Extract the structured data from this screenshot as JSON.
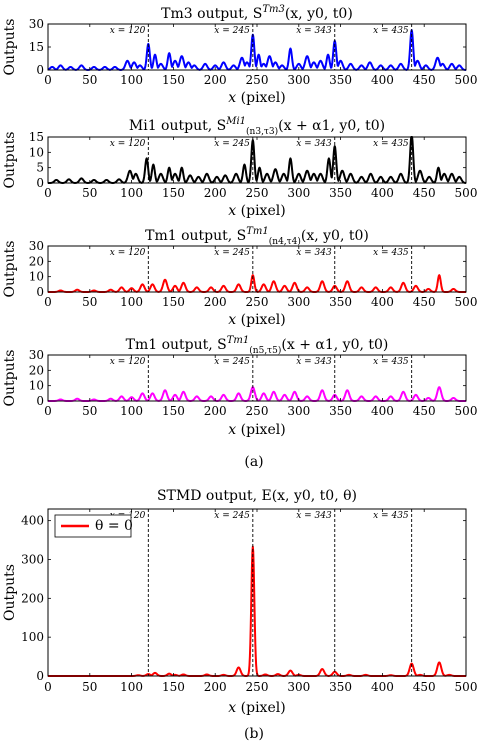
{
  "figure": {
    "label_a": "(a)",
    "label_b": "(b)"
  },
  "chart_data": [
    {
      "type": "line",
      "title": "Tm3 output, S^{Tm3}(x, y0, t0)",
      "xlabel": "x (pixel)",
      "ylabel": "Outputs",
      "xlim": [
        0,
        500
      ],
      "ylim": [
        0,
        30
      ],
      "xticks": [
        0,
        50,
        100,
        150,
        200,
        250,
        300,
        350,
        400,
        450,
        500
      ],
      "yticks": [
        0,
        15,
        30
      ],
      "color": "#0000ff",
      "grid": false,
      "markers": [
        {
          "x": 120,
          "label": "x = 120"
        },
        {
          "x": 245,
          "label": "x = 245"
        },
        {
          "x": 343,
          "label": "x = 343"
        },
        {
          "x": 435,
          "label": "x = 435"
        }
      ],
      "series": [
        {
          "peaks": [
            [
              5,
              2
            ],
            [
              15,
              3
            ],
            [
              27,
              2
            ],
            [
              40,
              3
            ],
            [
              55,
              2
            ],
            [
              68,
              2
            ],
            [
              80,
              2
            ],
            [
              95,
              6
            ],
            [
              103,
              5
            ],
            [
              110,
              3
            ],
            [
              120,
              17
            ],
            [
              128,
              10
            ],
            [
              135,
              4
            ],
            [
              145,
              11
            ],
            [
              152,
              6
            ],
            [
              160,
              9
            ],
            [
              168,
              5
            ],
            [
              175,
              3
            ],
            [
              188,
              4
            ],
            [
              200,
              3
            ],
            [
              210,
              5
            ],
            [
              222,
              3
            ],
            [
              232,
              8
            ],
            [
              238,
              5
            ],
            [
              245,
              23
            ],
            [
              252,
              10
            ],
            [
              258,
              4
            ],
            [
              265,
              9
            ],
            [
              272,
              5
            ],
            [
              280,
              3
            ],
            [
              290,
              14
            ],
            [
              300,
              4
            ],
            [
              310,
              9
            ],
            [
              318,
              5
            ],
            [
              326,
              6
            ],
            [
              335,
              10
            ],
            [
              343,
              19
            ],
            [
              350,
              6
            ],
            [
              362,
              4
            ],
            [
              375,
              3
            ],
            [
              385,
              5
            ],
            [
              398,
              3
            ],
            [
              410,
              3
            ],
            [
              422,
              4
            ],
            [
              435,
              26
            ],
            [
              442,
              6
            ],
            [
              452,
              3
            ],
            [
              466,
              8
            ],
            [
              472,
              4
            ],
            [
              483,
              4
            ],
            [
              492,
              3
            ]
          ]
        }
      ]
    },
    {
      "type": "line",
      "title": "Mi1 output, S^{Mi1}_{(n3,τ3)}(x + α1, y0, t0)",
      "xlabel": "x (pixel)",
      "ylabel": "Outputs",
      "xlim": [
        0,
        500
      ],
      "ylim": [
        0,
        15
      ],
      "xticks": [
        0,
        50,
        100,
        150,
        200,
        250,
        300,
        350,
        400,
        450,
        500
      ],
      "yticks": [
        0,
        5,
        10,
        15
      ],
      "color": "#000000",
      "grid": false,
      "markers": [
        {
          "x": 120,
          "label": "x = 120"
        },
        {
          "x": 245,
          "label": "x = 245"
        },
        {
          "x": 343,
          "label": "x = 343"
        },
        {
          "x": 435,
          "label": "x = 435"
        }
      ],
      "series": [
        {
          "peaks": [
            [
              10,
              1
            ],
            [
              25,
              1.2
            ],
            [
              40,
              1.5
            ],
            [
              55,
              1
            ],
            [
              70,
              1
            ],
            [
              85,
              1.2
            ],
            [
              98,
              4
            ],
            [
              105,
              3
            ],
            [
              118,
              8
            ],
            [
              126,
              6
            ],
            [
              135,
              3
            ],
            [
              145,
              5
            ],
            [
              152,
              3
            ],
            [
              160,
              5
            ],
            [
              170,
              2.5
            ],
            [
              180,
              2
            ],
            [
              190,
              3
            ],
            [
              202,
              2
            ],
            [
              212,
              2.5
            ],
            [
              225,
              3
            ],
            [
              235,
              6
            ],
            [
              245,
              14
            ],
            [
              253,
              5
            ],
            [
              262,
              3
            ],
            [
              272,
              4.5
            ],
            [
              282,
              3
            ],
            [
              290,
              8
            ],
            [
              300,
              3
            ],
            [
              310,
              4
            ],
            [
              318,
              3
            ],
            [
              326,
              3
            ],
            [
              336,
              8
            ],
            [
              343,
              12
            ],
            [
              352,
              4
            ],
            [
              362,
              3
            ],
            [
              375,
              2
            ],
            [
              386,
              3
            ],
            [
              398,
              2
            ],
            [
              410,
              2
            ],
            [
              422,
              3
            ],
            [
              435,
              16
            ],
            [
              445,
              4
            ],
            [
              456,
              2
            ],
            [
              467,
              5
            ],
            [
              474,
              3
            ],
            [
              483,
              3
            ],
            [
              492,
              2
            ]
          ]
        }
      ]
    },
    {
      "type": "line",
      "title": "Tm1 output, S^{Tm1}_{(n4,τ4)}(x, y0, t0)",
      "xlabel": "x (pixel)",
      "ylabel": "Outputs",
      "xlim": [
        0,
        500
      ],
      "ylim": [
        0,
        30
      ],
      "xticks": [
        0,
        50,
        100,
        150,
        200,
        250,
        300,
        350,
        400,
        450,
        500
      ],
      "yticks": [
        0,
        10,
        20,
        30
      ],
      "color": "#ff0000",
      "grid": false,
      "markers": [
        {
          "x": 120,
          "label": "x = 120"
        },
        {
          "x": 245,
          "label": "x = 245"
        },
        {
          "x": 343,
          "label": "x = 343"
        },
        {
          "x": 435,
          "label": "x = 435"
        }
      ],
      "series": [
        {
          "peaks": [
            [
              15,
              1
            ],
            [
              35,
              1.5
            ],
            [
              55,
              1
            ],
            [
              75,
              1.5
            ],
            [
              88,
              3
            ],
            [
              100,
              2.5
            ],
            [
              113,
              5
            ],
            [
              125,
              5
            ],
            [
              140,
              8
            ],
            [
              152,
              4
            ],
            [
              162,
              6
            ],
            [
              178,
              3
            ],
            [
              195,
              3
            ],
            [
              210,
              4
            ],
            [
              228,
              5
            ],
            [
              245,
              11
            ],
            [
              258,
              5
            ],
            [
              270,
              7
            ],
            [
              283,
              4
            ],
            [
              295,
              6
            ],
            [
              310,
              3
            ],
            [
              328,
              7
            ],
            [
              343,
              4
            ],
            [
              358,
              7
            ],
            [
              375,
              3
            ],
            [
              392,
              3
            ],
            [
              410,
              3
            ],
            [
              425,
              6
            ],
            [
              440,
              4
            ],
            [
              455,
              2
            ],
            [
              468,
              11
            ],
            [
              485,
              2
            ]
          ]
        }
      ]
    },
    {
      "type": "line",
      "title": "Tm1 output, S^{Tm1}_{(n5,τ5)}(x + α1, y0, t0)",
      "xlabel": "x (pixel)",
      "ylabel": "Outputs",
      "xlim": [
        0,
        500
      ],
      "ylim": [
        0,
        30
      ],
      "xticks": [
        0,
        50,
        100,
        150,
        200,
        250,
        300,
        350,
        400,
        450,
        500
      ],
      "yticks": [
        0,
        10,
        20,
        30
      ],
      "color": "#ff00ff",
      "grid": false,
      "markers": [
        {
          "x": 120,
          "label": "x = 120"
        },
        {
          "x": 245,
          "label": "x = 245"
        },
        {
          "x": 343,
          "label": "x = 343"
        },
        {
          "x": 435,
          "label": "x = 435"
        }
      ],
      "series": [
        {
          "peaks": [
            [
              15,
              1
            ],
            [
              35,
              1.5
            ],
            [
              55,
              1
            ],
            [
              75,
              1.5
            ],
            [
              88,
              3
            ],
            [
              100,
              2.5
            ],
            [
              113,
              5
            ],
            [
              125,
              5
            ],
            [
              140,
              7
            ],
            [
              152,
              4
            ],
            [
              162,
              6
            ],
            [
              178,
              3
            ],
            [
              195,
              3
            ],
            [
              210,
              4
            ],
            [
              228,
              5
            ],
            [
              245,
              9
            ],
            [
              258,
              5
            ],
            [
              270,
              6
            ],
            [
              283,
              4
            ],
            [
              295,
              6
            ],
            [
              310,
              3
            ],
            [
              328,
              7
            ],
            [
              343,
              4
            ],
            [
              358,
              7
            ],
            [
              375,
              3
            ],
            [
              392,
              3
            ],
            [
              410,
              3
            ],
            [
              425,
              6
            ],
            [
              440,
              4
            ],
            [
              455,
              2
            ],
            [
              468,
              9
            ],
            [
              485,
              2
            ]
          ]
        }
      ]
    },
    {
      "type": "line",
      "title": "STMD output, E(x, y0, t0, θ)",
      "xlabel": "x (pixel)",
      "ylabel": "Outputs",
      "xlim": [
        0,
        500
      ],
      "ylim": [
        0,
        430
      ],
      "xticks": [
        0,
        50,
        100,
        150,
        200,
        250,
        300,
        350,
        400,
        450,
        500
      ],
      "yticks": [
        0,
        100,
        200,
        300,
        400
      ],
      "color": "#ff0000",
      "grid": false,
      "legend": {
        "label": "θ = 0",
        "position": "top-left"
      },
      "markers": [
        {
          "x": 120,
          "label": "x = 120"
        },
        {
          "x": 245,
          "label": "x = 245"
        },
        {
          "x": 343,
          "label": "x = 343"
        },
        {
          "x": 435,
          "label": "x = 435"
        }
      ],
      "series": [
        {
          "name": "θ = 0",
          "peaks": [
            [
              108,
              2
            ],
            [
              120,
              5
            ],
            [
              128,
              8
            ],
            [
              145,
              6
            ],
            [
              152,
              3
            ],
            [
              162,
              4
            ],
            [
              190,
              4
            ],
            [
              210,
              3
            ],
            [
              228,
              22
            ],
            [
              245,
              333
            ],
            [
              260,
              4
            ],
            [
              275,
              5
            ],
            [
              290,
              14
            ],
            [
              300,
              3
            ],
            [
              328,
              18
            ],
            [
              343,
              11
            ],
            [
              360,
              3
            ],
            [
              380,
              3
            ],
            [
              410,
              2
            ],
            [
              435,
              32
            ],
            [
              445,
              3
            ],
            [
              468,
              35
            ],
            [
              480,
              3
            ]
          ]
        }
      ]
    }
  ]
}
